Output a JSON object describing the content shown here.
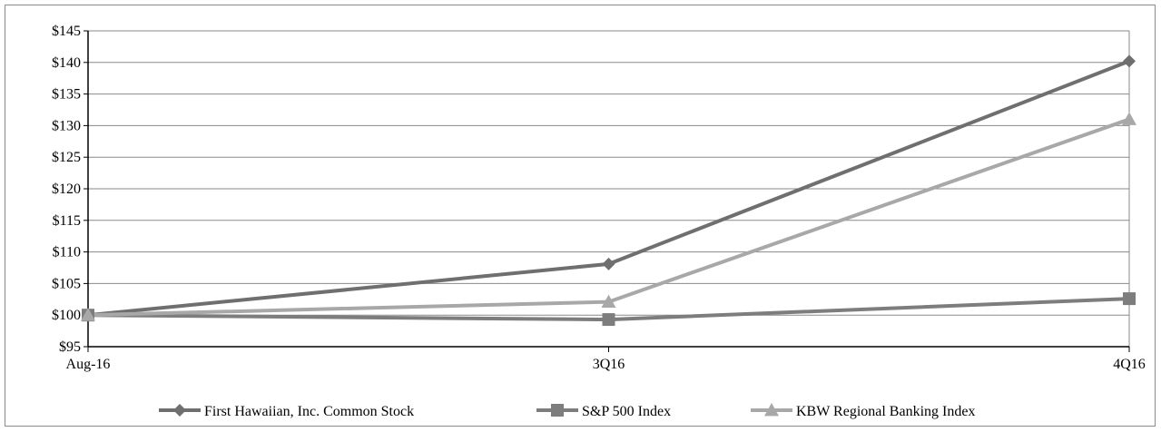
{
  "chart_data": {
    "type": "line",
    "title": "",
    "xlabel": "",
    "ylabel": "",
    "categories": [
      "Aug-16",
      "3Q16",
      "4Q16"
    ],
    "ylim": [
      95,
      145
    ],
    "yticks": [
      95,
      100,
      105,
      110,
      115,
      120,
      125,
      130,
      135,
      140,
      145
    ],
    "y_tick_labels": [
      "$95",
      "$100",
      "$105",
      "$110",
      "$115",
      "$120",
      "$125",
      "$130",
      "$135",
      "$140",
      "$145"
    ],
    "grid": true,
    "legend_position": "bottom",
    "series": [
      {
        "name": "First Hawaiian, Inc. Common Stock",
        "values": [
          100,
          108.1,
          140.2
        ],
        "color": "#6f6f6f",
        "marker": "diamond"
      },
      {
        "name": "S&P 500 Index",
        "values": [
          100,
          99.3,
          102.6
        ],
        "color": "#7d7d7d",
        "marker": "square"
      },
      {
        "name": "KBW Regional Banking Index",
        "values": [
          100,
          102.1,
          131.0
        ],
        "color": "#a8a8a8",
        "marker": "triangle"
      }
    ]
  }
}
